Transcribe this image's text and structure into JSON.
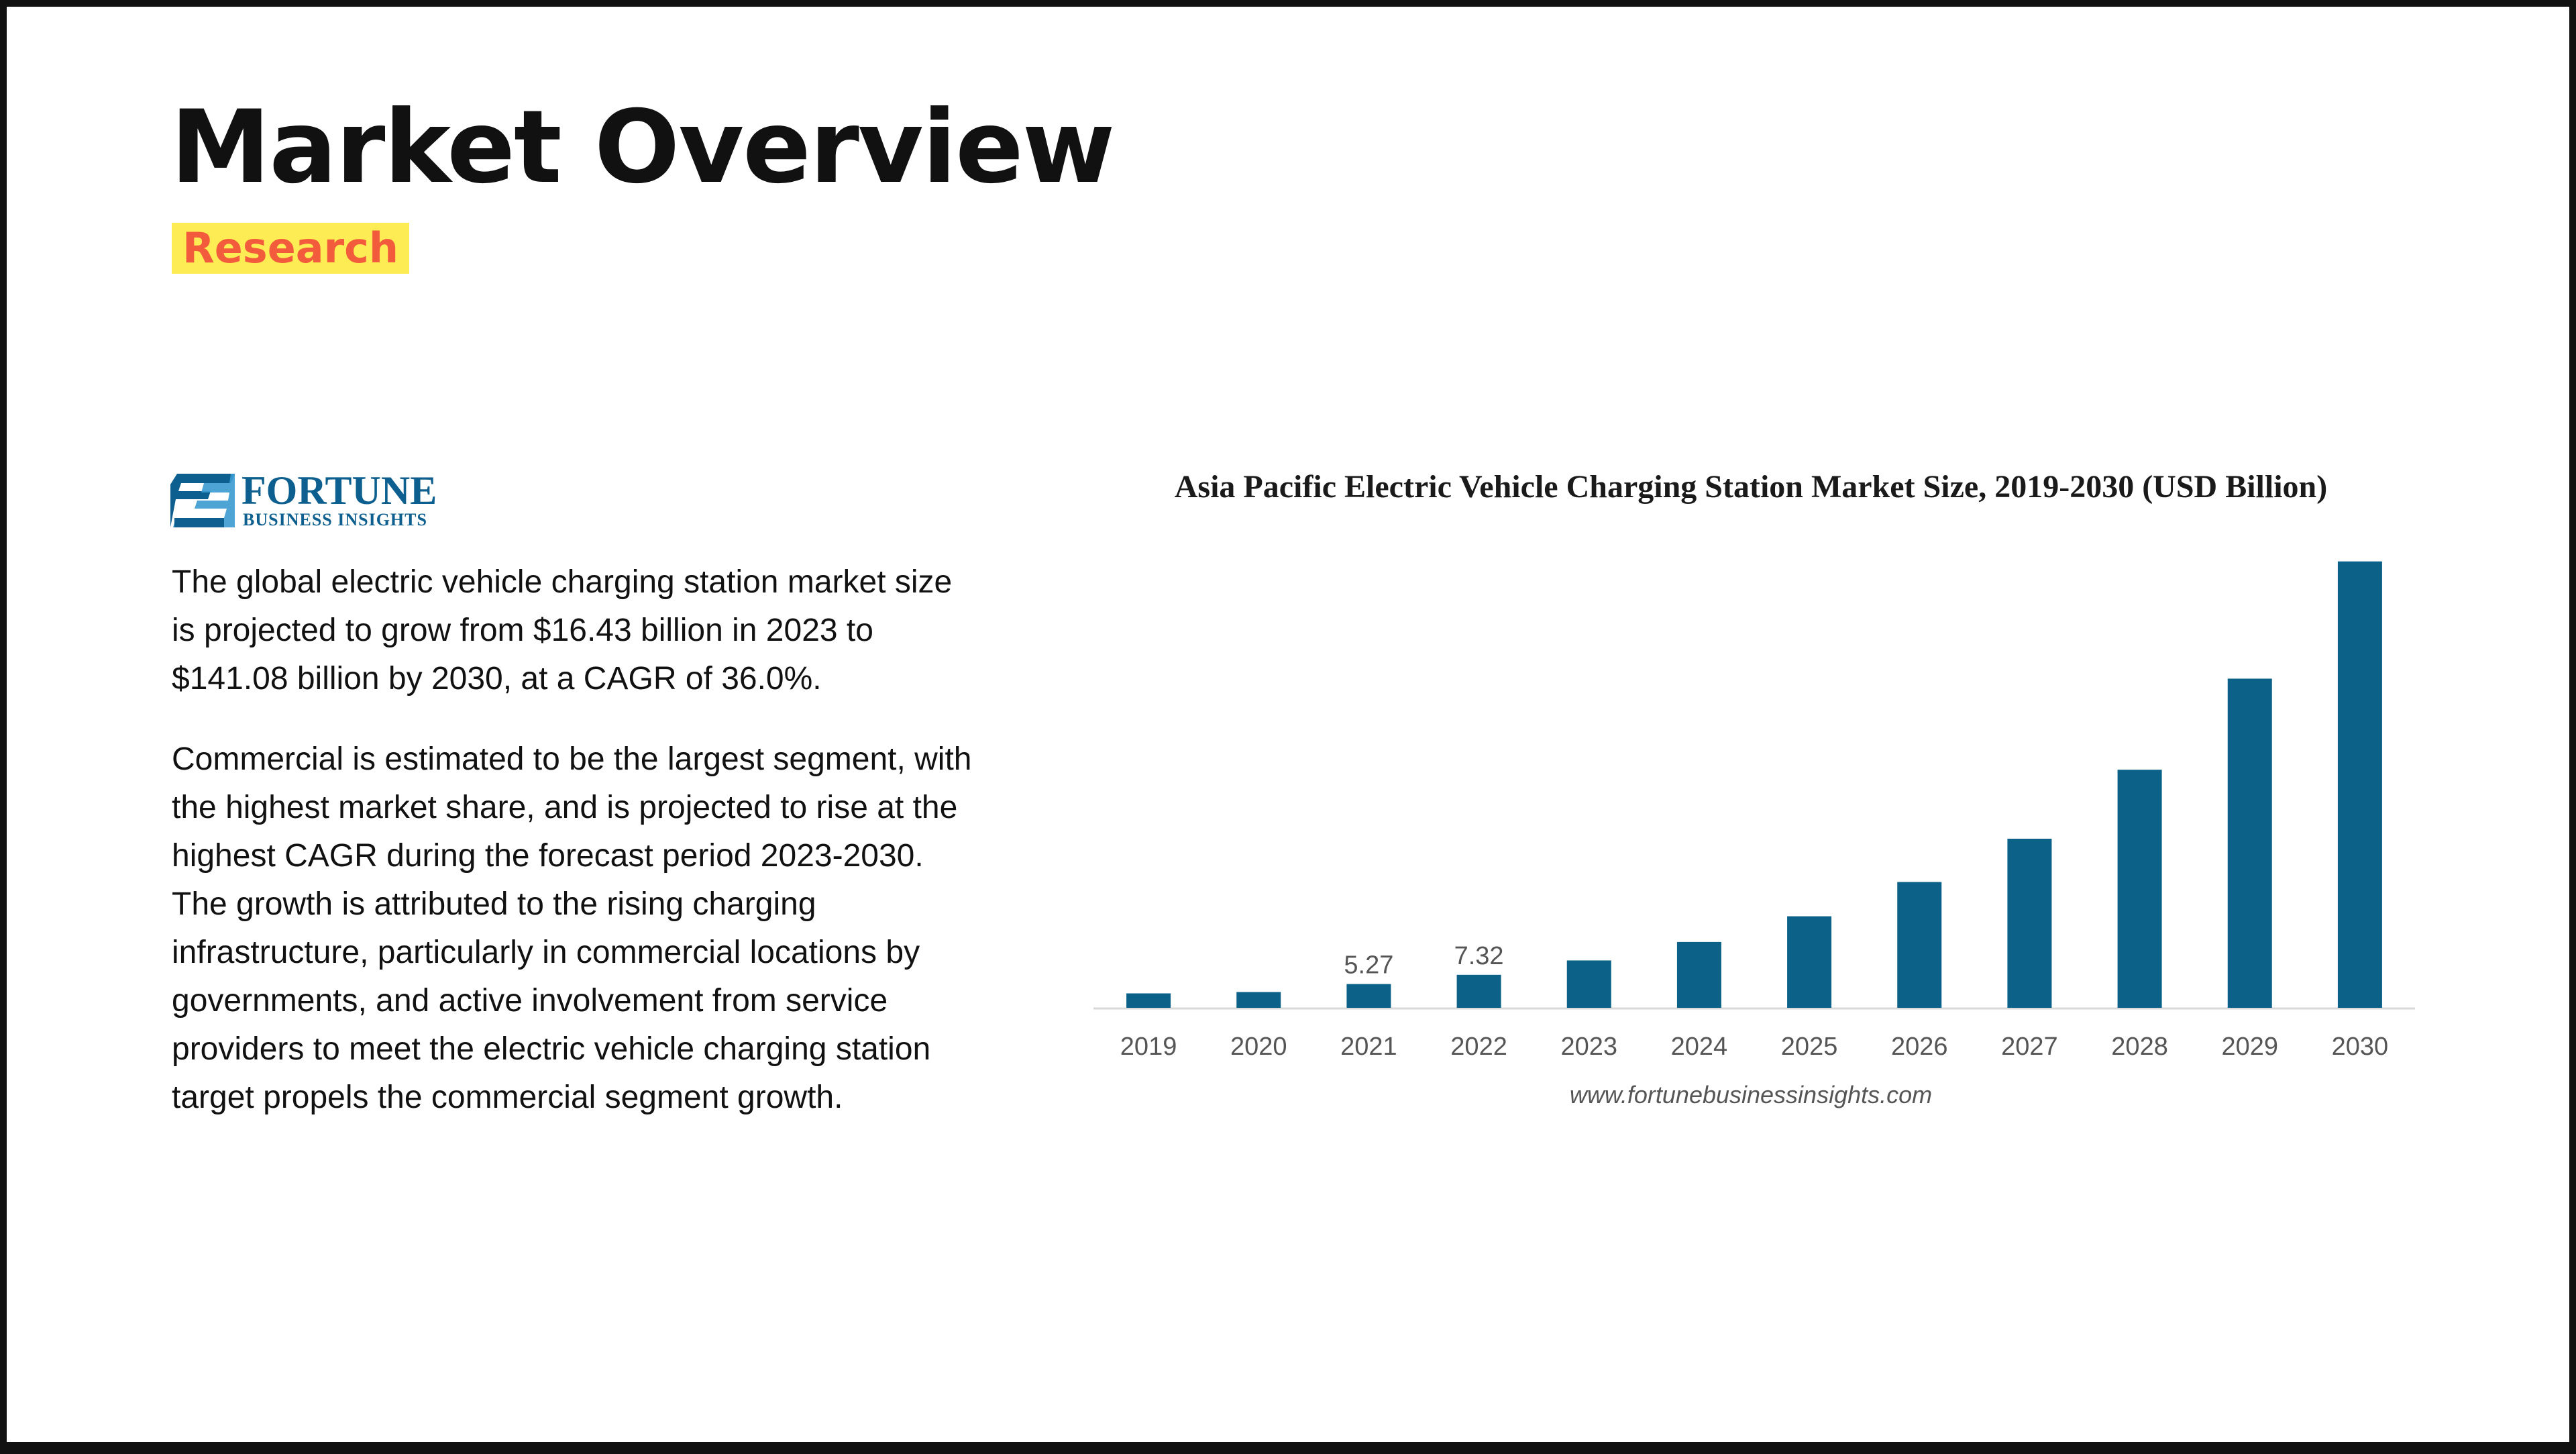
{
  "page": {
    "title": "Market Overview",
    "tag": "Research"
  },
  "logo": {
    "name": "FORTUNE",
    "subtitle": "BUSINESS INSIGHTS"
  },
  "body": {
    "paragraph1": "The global electric vehicle charging station market size is projected to grow from $16.43 billion in 2023 to $141.08 billion by 2030, at a CAGR of 36.0%.",
    "paragraph2": "Commercial is estimated to be the largest segment, with the highest market share, and is projected to rise at the highest CAGR during the forecast period 2023-2030. The growth is attributed to the rising charging infrastructure, particularly in commercial locations by governments, and active involvement from service providers to meet the electric vehicle charging station target propels the commercial segment growth."
  },
  "colors": {
    "bar": "#0b6188",
    "title_text": "#111111",
    "tag_background": "#fdec53",
    "tag_text": "#f25c3c",
    "brand": "#0c5f8e"
  },
  "chart_data": {
    "type": "bar",
    "title": "Asia Pacific Electric Vehicle Charging Station Market Size, 2019-2030 (USD Billion)",
    "source": "www.fortunebusinessinsights.com",
    "categories": [
      "2019",
      "2020",
      "2021",
      "2022",
      "2023",
      "2024",
      "2025",
      "2026",
      "2027",
      "2028",
      "2029",
      "2030"
    ],
    "values": [
      3.2,
      3.5,
      5.27,
      7.32,
      10.5,
      14.6,
      20.3,
      27.9,
      37.5,
      52.8,
      73.0,
      99.0
    ],
    "data_labels": [
      "",
      "",
      "5.27",
      "7.32",
      "",
      "",
      "",
      "",
      "",
      "",
      "",
      ""
    ],
    "xlabel": "",
    "ylabel": "",
    "ylim": [
      0,
      100
    ],
    "grid": false,
    "legend": "none"
  }
}
